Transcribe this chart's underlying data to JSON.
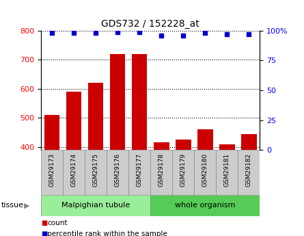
{
  "title": "GDS732 / 152228_at",
  "samples": [
    "GSM29173",
    "GSM29174",
    "GSM29175",
    "GSM29176",
    "GSM29177",
    "GSM29178",
    "GSM29179",
    "GSM29180",
    "GSM29181",
    "GSM29182"
  ],
  "counts": [
    510,
    590,
    620,
    720,
    720,
    415,
    425,
    460,
    410,
    445
  ],
  "percentile_ranks": [
    98,
    98,
    98,
    99,
    99,
    96,
    96,
    98,
    97,
    97
  ],
  "bar_color": "#CC0000",
  "dot_color": "#0000CC",
  "ylim_left": [
    390,
    800
  ],
  "ylim_right": [
    0,
    100
  ],
  "yticks_left": [
    400,
    500,
    600,
    700,
    800
  ],
  "yticks_right": [
    0,
    25,
    50,
    75,
    100
  ],
  "group1_label": "Malpighian tubule",
  "group2_label": "whole organism",
  "group1_color": "#99EE99",
  "group2_color": "#55CC55",
  "tick_bg_color": "#cccccc",
  "tick_border_color": "#888888",
  "legend_count_label": "count",
  "legend_pct_label": "percentile rank within the sample",
  "tissue_label": "tissue"
}
